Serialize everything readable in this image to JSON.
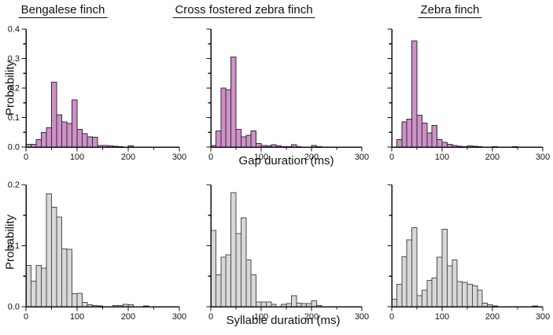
{
  "figure_title": "",
  "chart_data": {
    "type": "bar",
    "layout": "2x3 small-multiple histograms",
    "bin_width_ms": 10,
    "x_range": [
      0,
      300
    ],
    "x_major_ticks": [
      0,
      100,
      200,
      300
    ],
    "x_minor_ticks": [
      50,
      150,
      250
    ],
    "grid": "off",
    "legend": "none",
    "columns": [
      "Bengalese finch",
      "Cross fostered zebra finch",
      "Zebra finch"
    ],
    "rows": [
      {
        "xlabel": "Gap duration (ms)",
        "ylabel": "Probability",
        "ylim": [
          0,
          0.4
        ],
        "y_major_step": 0.1,
        "y_minor_step": 0.05,
        "y_tick_labels": [
          "0.0",
          "0.1",
          "0.2",
          "0.3",
          "0.4"
        ],
        "bar_fill": "#cd92c3",
        "bar_stroke": "#352544",
        "series": [
          {
            "name": "Bengalese finch",
            "values": [
              0.01,
              0.01,
              0.025,
              0.05,
              0.065,
              0.22,
              0.11,
              0.085,
              0.08,
              0.16,
              0.06,
              0.045,
              0.035,
              0.033,
              0.006,
              0.005,
              0.004,
              0.003,
              0.002,
              0,
              0.004,
              0,
              0,
              0,
              0,
              0,
              0,
              0,
              0,
              0
            ]
          },
          {
            "name": "Cross fostered zebra finch",
            "values": [
              0.005,
              0.055,
              0.2,
              0.195,
              0.305,
              0.06,
              0.035,
              0.04,
              0.055,
              0.012,
              0.006,
              0.004,
              0.008,
              0.004,
              0.002,
              0.002,
              0.008,
              0.002,
              0,
              0,
              0.005,
              0.002,
              0,
              0,
              0,
              0,
              0,
              0,
              0,
              0
            ]
          },
          {
            "name": "Zebra finch",
            "values": [
              0,
              0.025,
              0.085,
              0.095,
              0.36,
              0.108,
              0.082,
              0.048,
              0.073,
              0.026,
              0.016,
              0.009,
              0.005,
              0.003,
              0.002,
              0.004,
              0.003,
              0.001,
              0,
              0,
              0.002,
              0,
              0,
              0,
              0.001,
              0,
              0,
              0,
              0,
              0
            ]
          }
        ]
      },
      {
        "xlabel": "Syllable duration (ms)",
        "ylabel": "Probability",
        "ylim": [
          0,
          0.2
        ],
        "y_major_step": 0.1,
        "y_minor_step": 0.05,
        "y_tick_labels": [
          "0.0",
          "0.1",
          "0.2"
        ],
        "bar_fill": "#d8d8d8",
        "bar_stroke": "#4d4d4d",
        "series": [
          {
            "name": "Bengalese finch",
            "values": [
              0.068,
              0.042,
              0.068,
              0.063,
              0.185,
              0.163,
              0.147,
              0.095,
              0.094,
              0.021,
              0.022,
              0.007,
              0.003,
              0.002,
              0.001,
              0,
              0,
              0.002,
              0.002,
              0.004,
              0.003,
              0,
              0,
              0.001,
              0,
              0,
              0,
              0,
              0,
              0
            ]
          },
          {
            "name": "Cross fostered zebra finch",
            "values": [
              0.125,
              0.052,
              0.081,
              0.085,
              0.187,
              0.12,
              0.146,
              0.077,
              0.052,
              0.008,
              0.008,
              0.008,
              0.004,
              0,
              0.004,
              0.005,
              0.018,
              0.006,
              0.005,
              0.005,
              0.01,
              0.002,
              0,
              0,
              0,
              0,
              0,
              0,
              0,
              0
            ]
          },
          {
            "name": "Zebra finch",
            "values": [
              0.012,
              0.037,
              0.082,
              0.11,
              0.13,
              0.018,
              0.027,
              0.043,
              0.047,
              0.081,
              0.127,
              0.067,
              0.077,
              0.041,
              0.04,
              0.037,
              0.034,
              0.027,
              0.006,
              0.003,
              0.001,
              0,
              0,
              0,
              0,
              0,
              0,
              0,
              0.001,
              0
            ]
          }
        ]
      }
    ]
  }
}
